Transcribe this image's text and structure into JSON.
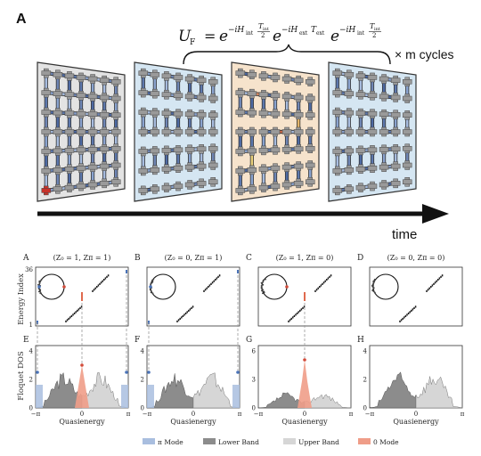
{
  "top": {
    "panel_label": "A",
    "formula": {
      "lhs": "U",
      "lhs_sub": "F",
      "eq": "=",
      "e": "e",
      "exp1": "−iH",
      "exp1_sub": "int",
      "frac_num": "T",
      "frac_num_sub": "int",
      "frac_den": "2",
      "exp2": "−iH",
      "exp2_sub": "ext",
      "exp2_t": "T",
      "exp2_t_sub": "ext"
    },
    "cycles_label": "× m cycles",
    "time_label": "time"
  },
  "colors": {
    "gray_panel": "#e3e3e3",
    "blue_panel": "#d5e6f2",
    "orange_panel": "#f6e3cc",
    "pi_mode": "#a9bedf",
    "lower_band": "#8c8c8c",
    "upper_band": "#d6d6d6",
    "zero_mode": "#ef9d88",
    "spectrum_line": "#1a1a1a"
  },
  "bottom": {
    "columns": [
      {
        "top_label": "A",
        "bottom_label": "E",
        "title": "(Z₀ = 1, Zπ = 1)",
        "dos_ymax": "4"
      },
      {
        "top_label": "B",
        "bottom_label": "F",
        "title": "(Z₀ = 0, Zπ = 1)",
        "dos_ymax": "4"
      },
      {
        "top_label": "C",
        "bottom_label": "G",
        "title": "(Z₀ = 1, Zπ = 0)",
        "dos_ymax": "6"
      },
      {
        "top_label": "D",
        "bottom_label": "H",
        "title": "(Z₀ = 0, Zπ = 0)",
        "dos_ymax": "4"
      }
    ],
    "energy_axis_label": "Energy Index",
    "energy_ticks": [
      "36",
      "1"
    ],
    "dos_axis_label": "Floquet DOS",
    "dos_ticks_four": [
      "4",
      "2",
      "0"
    ],
    "dos_ticks_six": [
      "6",
      "3",
      "0"
    ],
    "x_ticks": [
      "−π",
      "0",
      "π"
    ],
    "x_label": "Quasienergy",
    "legend": [
      {
        "label": "π Mode",
        "color": "#a9bedf"
      },
      {
        "label": "Lower Band",
        "color": "#8c8c8c"
      },
      {
        "label": "Upper Band",
        "color": "#d6d6d6"
      },
      {
        "label": "0 Mode",
        "color": "#ef9d88"
      }
    ]
  }
}
